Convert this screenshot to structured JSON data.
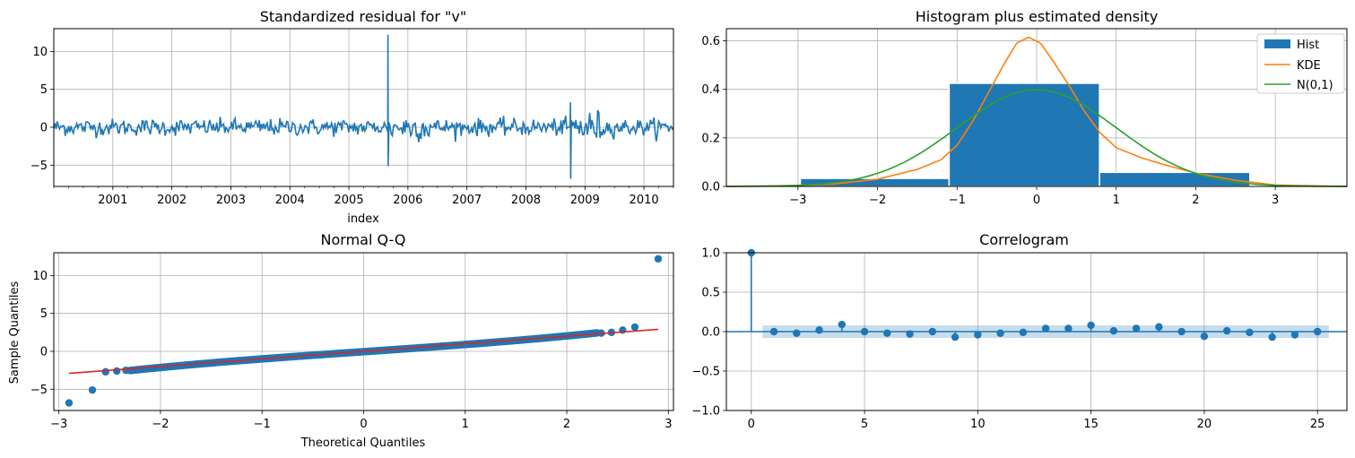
{
  "colors": {
    "blue": "#1f77b4",
    "orange": "#ff7f0e",
    "green": "#2ca02c",
    "red": "#d62728",
    "grid": "#b0b0b0",
    "band": "#1f77b4"
  },
  "chart_data": [
    {
      "id": "residual",
      "type": "line",
      "title": "Standardized residual for \"v\"",
      "xlabel": "index",
      "ylabel": "",
      "x_domain": [
        "2000-01",
        "2010-06"
      ],
      "xlim_years": [
        2000.0,
        2010.5
      ],
      "ylim": [
        -7.8,
        13.0
      ],
      "x_ticks": [
        "2001",
        "2002",
        "2003",
        "2004",
        "2005",
        "2006",
        "2007",
        "2008",
        "2009",
        "2010"
      ],
      "y_ticks": [
        "−5",
        "0",
        "5",
        "10"
      ],
      "y_tick_values": [
        -5,
        0,
        5,
        10
      ],
      "spikes": [
        {
          "x": "2005-09",
          "y": 12.2
        },
        {
          "x": "2005-09",
          "y": -5.1
        },
        {
          "x": "2008-10",
          "y": 3.3
        },
        {
          "x": "2008-10",
          "y": -6.8
        }
      ],
      "grid": true
    },
    {
      "id": "histogram",
      "type": "bar",
      "title": "Histogram plus estimated density",
      "xlim": [
        -3.9,
        3.9
      ],
      "ylim": [
        0,
        0.65
      ],
      "x_ticks": [
        "−3",
        "−2",
        "−1",
        "0",
        "1",
        "2",
        "3"
      ],
      "x_tick_values": [
        -3,
        -2,
        -1,
        0,
        1,
        2,
        3
      ],
      "y_ticks": [
        "0.0",
        "0.2",
        "0.4",
        "0.6"
      ],
      "y_tick_values": [
        0,
        0.2,
        0.4,
        0.6
      ],
      "bins": [
        {
          "from": -2.97,
          "to": -1.1,
          "value": 0.033
        },
        {
          "from": -1.1,
          "to": 0.79,
          "value": 0.425
        },
        {
          "from": 0.79,
          "to": 2.68,
          "value": 0.058
        }
      ],
      "series": [
        {
          "name": "Hist",
          "kind": "bar"
        },
        {
          "name": "KDE",
          "kind": "line"
        },
        {
          "name": "N(0,1)",
          "kind": "line"
        }
      ],
      "kde": {
        "x": [
          -3.9,
          -3.0,
          -2.5,
          -2.0,
          -1.5,
          -1.2,
          -1.0,
          -0.8,
          -0.6,
          -0.4,
          -0.25,
          -0.1,
          0.05,
          0.2,
          0.4,
          0.6,
          0.8,
          1.0,
          1.3,
          1.6,
          2.0,
          2.5,
          3.0,
          3.9
        ],
        "y": [
          0.0,
          0.004,
          0.012,
          0.03,
          0.07,
          0.11,
          0.17,
          0.27,
          0.39,
          0.51,
          0.59,
          0.615,
          0.59,
          0.52,
          0.42,
          0.31,
          0.22,
          0.16,
          0.12,
          0.09,
          0.055,
          0.025,
          0.006,
          0.0
        ]
      },
      "normal_curve": {
        "mean": 0,
        "sd": 1
      },
      "legend_position": "top-right",
      "grid": true
    },
    {
      "id": "qq",
      "type": "scatter",
      "title": "Normal Q-Q",
      "xlabel": "Theoretical Quantiles",
      "ylabel": "Sample Quantiles",
      "xlim": [
        -3.05,
        3.05
      ],
      "ylim": [
        -7.8,
        13.0
      ],
      "x_ticks": [
        "−3",
        "−2",
        "−1",
        "0",
        "1",
        "2",
        "3"
      ],
      "x_tick_values": [
        -3,
        -2,
        -1,
        0,
        1,
        2,
        3
      ],
      "y_ticks": [
        "−5",
        "0",
        "5",
        "10"
      ],
      "y_tick_values": [
        -5,
        0,
        5,
        10
      ],
      "reference_line": {
        "x": [
          -2.9,
          2.9
        ],
        "y": [
          -2.9,
          2.9
        ]
      },
      "outliers": [
        {
          "x": -2.9,
          "y": -6.8
        },
        {
          "x": -2.67,
          "y": -5.1
        },
        {
          "x": -2.54,
          "y": -2.7
        },
        {
          "x": -2.43,
          "y": -2.6
        },
        {
          "x": -2.34,
          "y": -2.5
        },
        {
          "x": 2.34,
          "y": 2.4
        },
        {
          "x": 2.44,
          "y": 2.5
        },
        {
          "x": 2.55,
          "y": 2.8
        },
        {
          "x": 2.67,
          "y": 3.2
        },
        {
          "x": 2.9,
          "y": 12.2
        }
      ],
      "grid": true
    },
    {
      "id": "correlogram",
      "type": "stem",
      "title": "Correlogram",
      "xlim": [
        -1.1,
        26.3
      ],
      "ylim": [
        -1.0,
        1.0
      ],
      "x_ticks": [
        "0",
        "5",
        "10",
        "15",
        "20",
        "25"
      ],
      "x_tick_values": [
        0,
        5,
        10,
        15,
        20,
        25
      ],
      "y_ticks": [
        "−1.0",
        "−0.5",
        "0.0",
        "0.5",
        "1.0"
      ],
      "y_tick_values": [
        -1.0,
        -0.5,
        0.0,
        0.5,
        1.0
      ],
      "lags": [
        0,
        1,
        2,
        3,
        4,
        5,
        6,
        7,
        8,
        9,
        10,
        11,
        12,
        13,
        14,
        15,
        16,
        17,
        18,
        19,
        20,
        21,
        22,
        23,
        24,
        25
      ],
      "acf": [
        1.0,
        0.0,
        -0.02,
        0.02,
        0.09,
        0.0,
        -0.02,
        -0.03,
        0.0,
        -0.07,
        -0.04,
        -0.02,
        -0.01,
        0.04,
        0.04,
        0.08,
        0.01,
        0.04,
        0.06,
        0.0,
        -0.06,
        0.01,
        -0.01,
        -0.07,
        -0.04,
        0.0
      ],
      "confidence_band": [
        -0.08,
        0.08
      ],
      "grid": true
    }
  ]
}
